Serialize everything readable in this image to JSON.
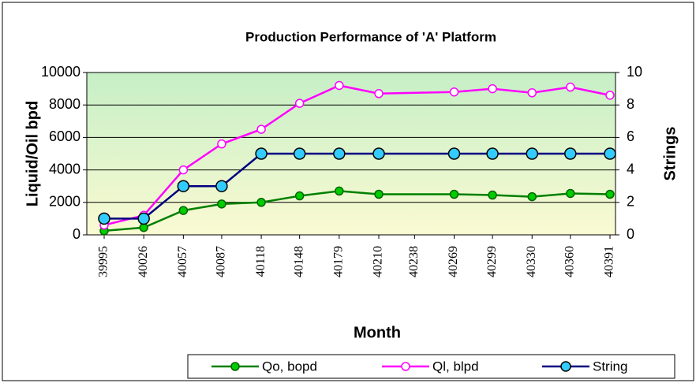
{
  "chart_data": {
    "type": "line",
    "title": "Production Performance of 'A' Platform",
    "x_label": "Month",
    "y_label": "Liquid/Oil bpd",
    "y2_label": "Strings",
    "x": [
      39995,
      40026,
      40057,
      40087,
      40118,
      40148,
      40179,
      40210,
      40269,
      40299,
      40330,
      40360,
      40391
    ],
    "xlim": [
      39995,
      40391
    ],
    "xticks": [
      39995,
      40026,
      40057,
      40087,
      40118,
      40148,
      40179,
      40210,
      40238,
      40269,
      40299,
      40330,
      40360,
      40391
    ],
    "ylim": [
      0,
      10000
    ],
    "yticks": [
      0,
      2000,
      4000,
      6000,
      8000,
      10000
    ],
    "y2lim": [
      0,
      10
    ],
    "y2ticks": [
      0,
      2,
      4,
      6,
      8,
      10
    ],
    "grid": true,
    "legend": "bottom",
    "series": [
      {
        "name": "Qo, bopd",
        "color": "#008000",
        "values": [
          250,
          450,
          1500,
          1900,
          2000,
          2400,
          2700,
          2500,
          2500,
          2450,
          2350,
          2550,
          2500
        ]
      },
      {
        "name": "Ql, blpd",
        "color": "#ff00ff",
        "values": [
          600,
          1200,
          4000,
          5600,
          6500,
          8100,
          9200,
          8700,
          8800,
          9000,
          8750,
          9100,
          8600
        ]
      },
      {
        "name": "String",
        "color": "#000080",
        "axis": "y2",
        "values": [
          1,
          1,
          3,
          3,
          5,
          5,
          5,
          5,
          5,
          5,
          5,
          5,
          5
        ]
      }
    ]
  }
}
